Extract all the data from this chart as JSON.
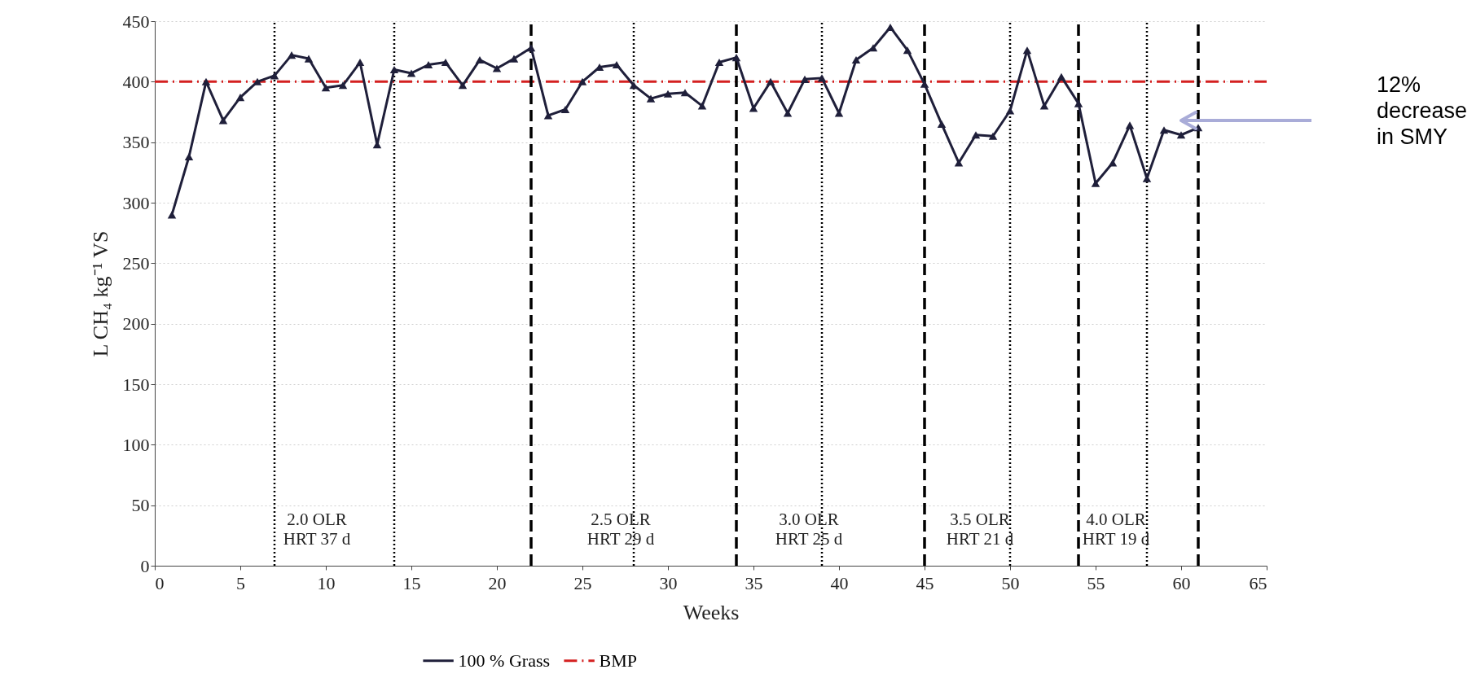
{
  "chart_data": {
    "type": "line",
    "xlabel": "Weeks",
    "ylabel": "L CH₄ kg⁻¹ VS",
    "x": [
      1,
      2,
      3,
      4,
      5,
      6,
      7,
      8,
      9,
      10,
      11,
      12,
      13,
      14,
      15,
      16,
      17,
      18,
      19,
      20,
      21,
      22,
      23,
      24,
      25,
      26,
      27,
      28,
      29,
      30,
      31,
      32,
      33,
      34,
      35,
      36,
      37,
      38,
      39,
      40,
      41,
      42,
      43,
      44,
      45,
      46,
      47,
      48,
      49,
      50,
      51,
      52,
      53,
      54,
      55,
      56,
      57,
      58,
      59,
      60,
      61
    ],
    "series": [
      {
        "name": "100 % Grass",
        "color": "#1f1f3a",
        "values": [
          290,
          338,
          400,
          368,
          387,
          400,
          405,
          422,
          419,
          395,
          397,
          416,
          348,
          410,
          407,
          414,
          416,
          397,
          418,
          411,
          419,
          428,
          372,
          377,
          400,
          412,
          414,
          397,
          386,
          390,
          391,
          380,
          416,
          420,
          378,
          400,
          374,
          402,
          403,
          374,
          418,
          428,
          445,
          426,
          398,
          365,
          333,
          356,
          355,
          376,
          426,
          380,
          404,
          382,
          316,
          333,
          364,
          320,
          360,
          356,
          362
        ]
      }
    ],
    "marker": "triangle",
    "legend": "bottom",
    "grid": "y",
    "xlim": [
      0,
      65
    ],
    "xticks": [
      0,
      5,
      10,
      15,
      20,
      25,
      30,
      35,
      40,
      45,
      50,
      55,
      60,
      65
    ],
    "ylim": [
      0,
      450
    ],
    "yticks": [
      0,
      50,
      100,
      150,
      200,
      250,
      300,
      350,
      400,
      450
    ],
    "ref_lines": [
      {
        "axis": "y",
        "value": 400,
        "label": "BMP",
        "color": "#d42020",
        "line_style": "dashdot"
      },
      {
        "axis": "x",
        "value": 7,
        "color": "#000000",
        "line_style": "dotted"
      },
      {
        "axis": "x",
        "value": 14,
        "color": "#000000",
        "line_style": "dotted"
      },
      {
        "axis": "x",
        "value": 22,
        "color": "#000000",
        "line_style": "dashed"
      },
      {
        "axis": "x",
        "value": 28,
        "color": "#000000",
        "line_style": "dotted"
      },
      {
        "axis": "x",
        "value": 34,
        "color": "#000000",
        "line_style": "dashed"
      },
      {
        "axis": "x",
        "value": 39,
        "color": "#000000",
        "line_style": "dotted"
      },
      {
        "axis": "x",
        "value": 45,
        "color": "#000000",
        "line_style": "dashed"
      },
      {
        "axis": "x",
        "value": 50,
        "color": "#000000",
        "line_style": "dotted"
      },
      {
        "axis": "x",
        "value": 54,
        "color": "#000000",
        "line_style": "dashed"
      },
      {
        "axis": "x",
        "value": 58,
        "color": "#000000",
        "line_style": "dotted"
      },
      {
        "axis": "x",
        "value": 61,
        "color": "#000000",
        "line_style": "dashed"
      }
    ],
    "annotations": [
      "2.0 OLR\nHRT 37 d",
      "2.5 OLR\nHRT 29 d",
      "3.0 OLR\nHRT 25 d",
      "3.5 OLR\nHRT 21 d",
      "4.0 OLR\nHRT 19 d",
      "12%\ndecrease\nin SMY"
    ]
  }
}
